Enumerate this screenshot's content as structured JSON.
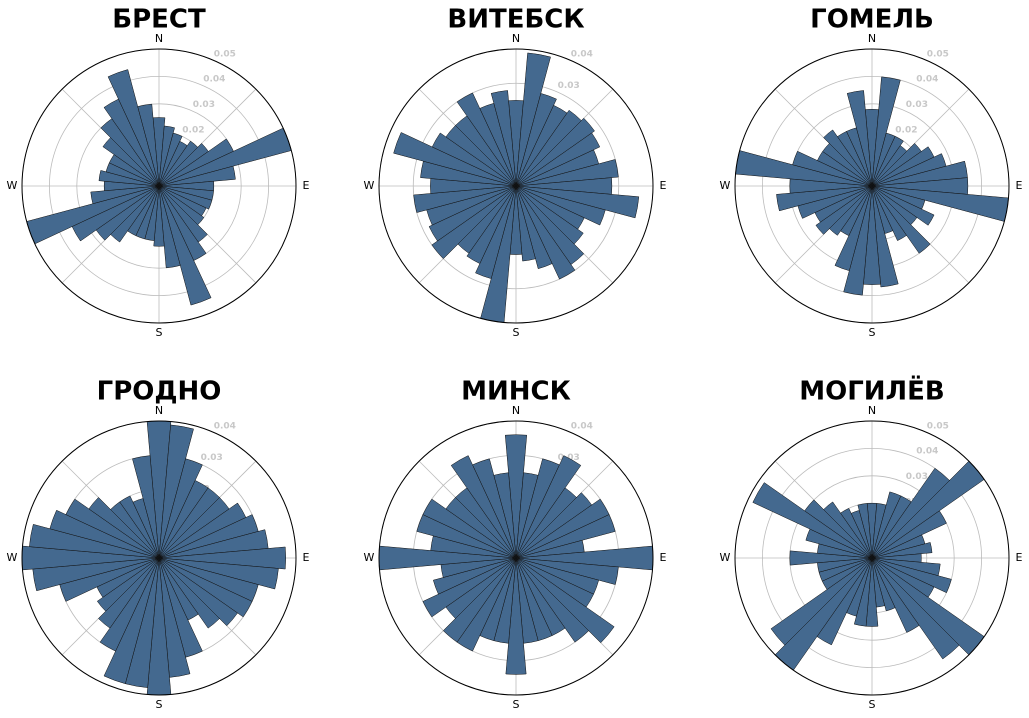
{
  "chart_data": [
    {
      "type": "polar-bar",
      "title": "БРЕСТ",
      "direction_labels": [
        "N",
        "E",
        "S",
        "W"
      ],
      "color": "#44698f",
      "theta": [
        0,
        10,
        20,
        30,
        40,
        50,
        60,
        70,
        80,
        90,
        100,
        110,
        120,
        130,
        140,
        150,
        160,
        170,
        180,
        190,
        200,
        210,
        220,
        230,
        240,
        250,
        260,
        270,
        280,
        290,
        300,
        310,
        320,
        330,
        340,
        350
      ],
      "values": [
        0.025,
        0.022,
        0.02,
        0.018,
        0.02,
        0.022,
        0.03,
        0.05,
        0.028,
        0.02,
        0.02,
        0.02,
        0.019,
        0.02,
        0.025,
        0.03,
        0.045,
        0.03,
        0.022,
        0.02,
        0.02,
        0.02,
        0.025,
        0.028,
        0.035,
        0.05,
        0.025,
        0.02,
        0.022,
        0.02,
        0.02,
        0.025,
        0.03,
        0.035,
        0.044,
        0.03
      ],
      "ylim": [
        0,
        0.05
      ],
      "yticks": [
        0.01,
        0.02,
        0.03,
        0.04,
        0.05
      ]
    },
    {
      "type": "polar-bar",
      "title": "ВИТЕБСК",
      "direction_labels": [
        "N",
        "E",
        "S",
        "W"
      ],
      "color": "#44698f",
      "theta": [
        0,
        10,
        20,
        30,
        40,
        50,
        60,
        70,
        80,
        90,
        100,
        110,
        120,
        130,
        140,
        150,
        160,
        170,
        180,
        190,
        200,
        210,
        220,
        230,
        240,
        250,
        260,
        270,
        280,
        290,
        300,
        310,
        320,
        330,
        340,
        350
      ],
      "values": [
        0.025,
        0.039,
        0.028,
        0.026,
        0.027,
        0.028,
        0.027,
        0.025,
        0.03,
        0.028,
        0.036,
        0.027,
        0.022,
        0.024,
        0.028,
        0.03,
        0.025,
        0.022,
        0.02,
        0.04,
        0.028,
        0.025,
        0.024,
        0.03,
        0.028,
        0.027,
        0.03,
        0.025,
        0.028,
        0.037,
        0.027,
        0.025,
        0.025,
        0.03,
        0.025,
        0.028
      ],
      "ylim": [
        0,
        0.04
      ],
      "yticks": [
        0.01,
        0.02,
        0.03,
        0.04
      ]
    },
    {
      "type": "polar-bar",
      "title": "ГОМЕЛЬ",
      "direction_labels": [
        "N",
        "E",
        "S",
        "W"
      ],
      "color": "#44698f",
      "theta": [
        0,
        10,
        20,
        30,
        40,
        50,
        60,
        70,
        80,
        90,
        100,
        110,
        120,
        130,
        140,
        150,
        160,
        170,
        180,
        190,
        200,
        210,
        220,
        230,
        240,
        250,
        260,
        270,
        280,
        290,
        300,
        310,
        320,
        330,
        340,
        350
      ],
      "values": [
        0.028,
        0.04,
        0.02,
        0.02,
        0.018,
        0.022,
        0.025,
        0.028,
        0.035,
        0.035,
        0.05,
        0.02,
        0.025,
        0.02,
        0.03,
        0.022,
        0.018,
        0.037,
        0.036,
        0.04,
        0.032,
        0.02,
        0.022,
        0.025,
        0.023,
        0.028,
        0.035,
        0.03,
        0.05,
        0.03,
        0.022,
        0.022,
        0.025,
        0.022,
        0.022,
        0.035
      ],
      "ylim": [
        0,
        0.05
      ],
      "yticks": [
        0.01,
        0.02,
        0.03,
        0.04,
        0.05
      ]
    },
    {
      "type": "polar-bar",
      "title": "ГРОДНО",
      "direction_labels": [
        "N",
        "E",
        "S",
        "W"
      ],
      "color": "#44698f",
      "theta": [
        0,
        10,
        20,
        30,
        40,
        50,
        60,
        70,
        80,
        90,
        100,
        110,
        120,
        130,
        140,
        150,
        160,
        170,
        180,
        190,
        200,
        210,
        220,
        230,
        240,
        250,
        260,
        270,
        280,
        290,
        300,
        310,
        320,
        330,
        340,
        350
      ],
      "values": [
        0.04,
        0.039,
        0.03,
        0.025,
        0.025,
        0.025,
        0.028,
        0.03,
        0.032,
        0.037,
        0.035,
        0.03,
        0.03,
        0.028,
        0.025,
        0.02,
        0.03,
        0.035,
        0.04,
        0.038,
        0.038,
        0.03,
        0.025,
        0.022,
        0.02,
        0.03,
        0.037,
        0.04,
        0.038,
        0.033,
        0.03,
        0.025,
        0.02,
        0.02,
        0.018,
        0.03
      ],
      "ylim": [
        0,
        0.04
      ],
      "yticks": [
        0.01,
        0.02,
        0.03,
        0.04
      ]
    },
    {
      "type": "polar-bar",
      "title": "МИНСК",
      "direction_labels": [
        "N",
        "E",
        "S",
        "W"
      ],
      "color": "#44698f",
      "theta": [
        0,
        10,
        20,
        30,
        40,
        50,
        60,
        70,
        80,
        90,
        100,
        110,
        120,
        130,
        140,
        150,
        160,
        170,
        180,
        190,
        200,
        210,
        220,
        230,
        240,
        250,
        260,
        270,
        280,
        290,
        300,
        310,
        320,
        330,
        340,
        350
      ],
      "values": [
        0.036,
        0.025,
        0.03,
        0.033,
        0.025,
        0.027,
        0.03,
        0.03,
        0.02,
        0.04,
        0.03,
        0.025,
        0.025,
        0.035,
        0.03,
        0.025,
        0.025,
        0.025,
        0.034,
        0.025,
        0.025,
        0.03,
        0.03,
        0.025,
        0.03,
        0.025,
        0.022,
        0.04,
        0.025,
        0.03,
        0.03,
        0.025,
        0.025,
        0.033,
        0.03,
        0.025
      ],
      "ylim": [
        0,
        0.04
      ],
      "yticks": [
        0.01,
        0.02,
        0.03,
        0.04
      ]
    },
    {
      "type": "polar-bar",
      "title": "МОГИЛЁВ",
      "direction_labels": [
        "N",
        "E",
        "S",
        "W"
      ],
      "color": "#44698f",
      "theta": [
        0,
        10,
        20,
        30,
        40,
        50,
        60,
        70,
        80,
        90,
        100,
        110,
        120,
        130,
        140,
        150,
        160,
        170,
        180,
        190,
        200,
        210,
        220,
        230,
        240,
        250,
        260,
        270,
        280,
        290,
        300,
        310,
        320,
        330,
        340,
        350
      ],
      "values": [
        0.02,
        0.02,
        0.025,
        0.025,
        0.04,
        0.05,
        0.03,
        0.02,
        0.022,
        0.018,
        0.025,
        0.03,
        0.025,
        0.05,
        0.045,
        0.03,
        0.02,
        0.018,
        0.025,
        0.025,
        0.022,
        0.035,
        0.05,
        0.045,
        0.02,
        0.02,
        0.02,
        0.03,
        0.02,
        0.025,
        0.048,
        0.03,
        0.025,
        0.02,
        0.018,
        0.02
      ],
      "ylim": [
        0,
        0.05
      ],
      "yticks": [
        0.01,
        0.02,
        0.03,
        0.04,
        0.05
      ]
    }
  ]
}
